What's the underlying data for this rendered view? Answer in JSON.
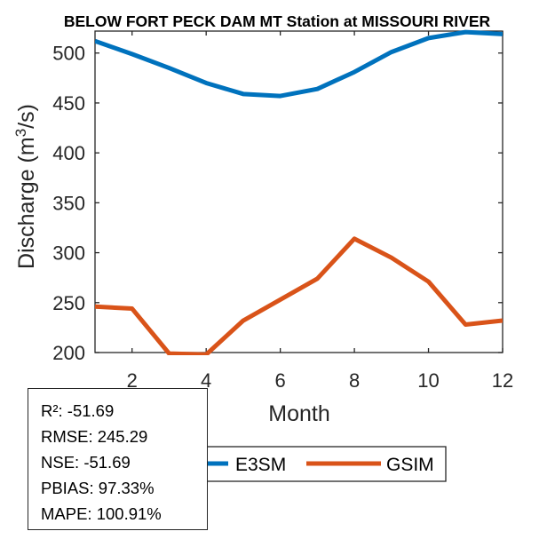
{
  "chart_data": {
    "type": "line",
    "title": "BELOW FORT PECK DAM MT  Station at  MISSOURI RIVER",
    "xlabel": "Month",
    "ylabel": "Discharge (m³/s)",
    "ylabel_parts": {
      "before": "Discharge (m",
      "sup": "3",
      "after": "/s)"
    },
    "x": [
      1,
      2,
      3,
      4,
      5,
      6,
      7,
      8,
      9,
      10,
      11,
      12
    ],
    "xlim": [
      1,
      12
    ],
    "ylim": [
      200,
      522
    ],
    "xticks": [
      2,
      4,
      6,
      8,
      10,
      12
    ],
    "yticks": [
      200,
      250,
      300,
      350,
      400,
      450,
      500
    ],
    "grid": false,
    "series": [
      {
        "name": "E3SM",
        "color": "#0072BD",
        "values": [
          512,
          499,
          485,
          470,
          459,
          457,
          464,
          481,
          501,
          515,
          521,
          519
        ]
      },
      {
        "name": "GSIM",
        "color": "#D95319",
        "values": [
          246,
          244,
          199,
          198,
          232,
          253,
          274,
          314,
          295,
          271,
          228,
          232
        ]
      }
    ],
    "legend": {
      "placement": "bottom-center",
      "entries": [
        "E3SM",
        "GSIM"
      ]
    }
  },
  "stats": {
    "lines": [
      "R²: -51.69",
      "RMSE: 245.29",
      "NSE: -51.69",
      "PBIAS: 97.33%",
      "MAPE: 100.91%"
    ]
  }
}
